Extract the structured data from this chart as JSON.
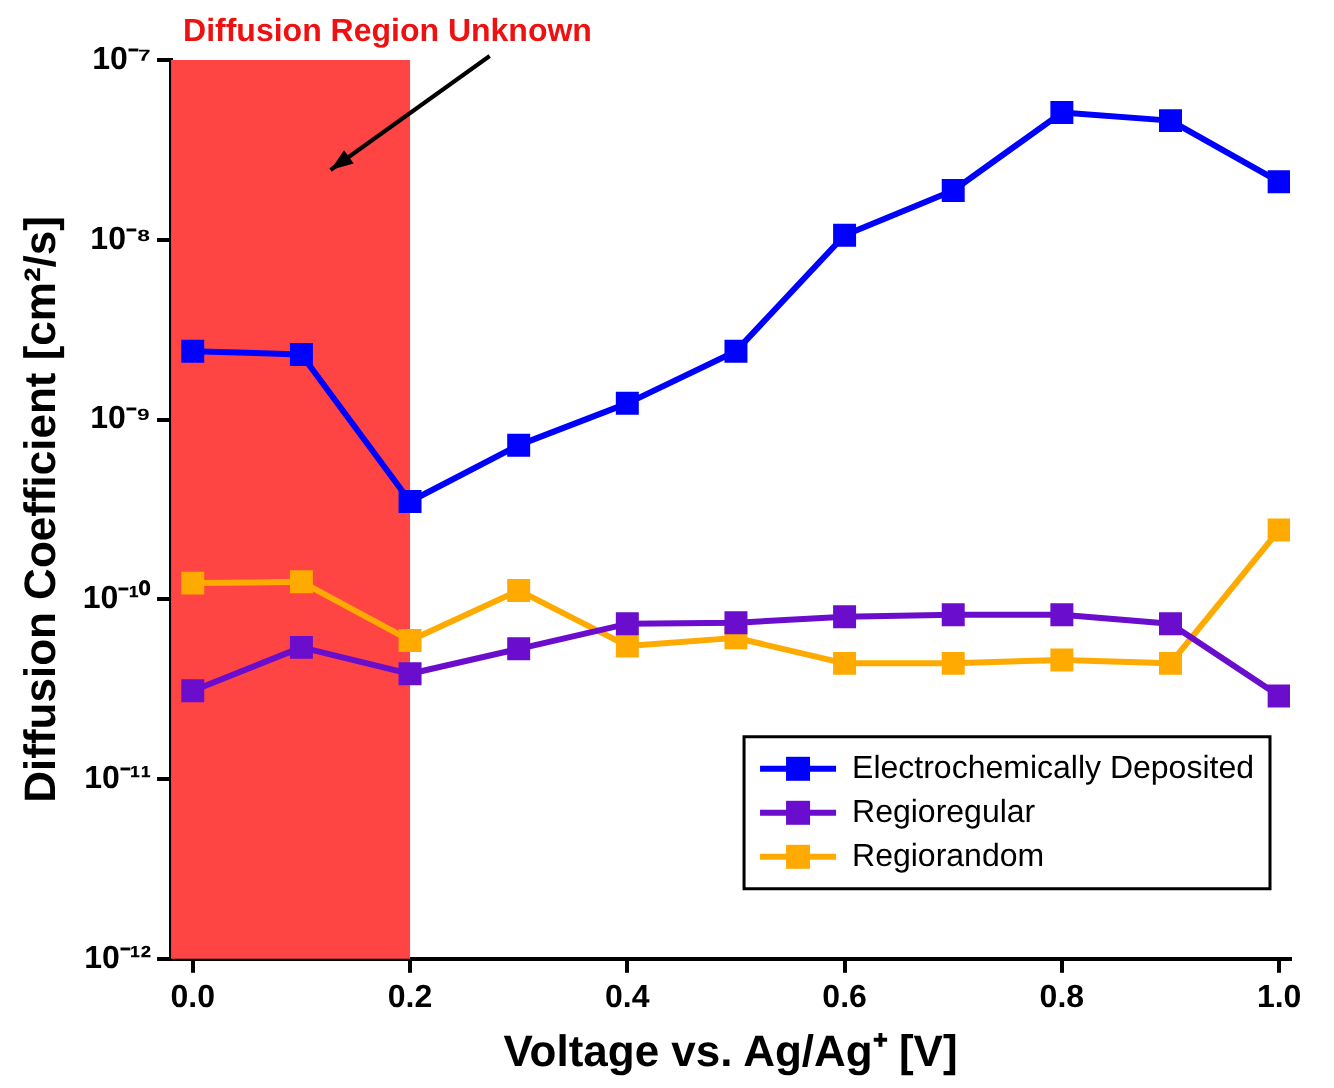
{
  "chart_data": {
    "type": "line",
    "xlabel": "Voltage vs. Ag/Ag⁺ [V]",
    "ylabel": "Diffusion Coefficient [cm²/s]",
    "x": [
      0,
      0.1,
      0.2,
      0.3,
      0.4,
      0.5,
      0.6,
      0.7,
      0.8,
      0.9,
      1.0
    ],
    "series": [
      {
        "name": "Electrochemically Deposited",
        "color": "#0000ff",
        "values": [
          2.4e-09,
          2.3e-09,
          3.5e-10,
          7.2e-10,
          1.23e-09,
          2.4e-09,
          1.06e-08,
          1.88e-08,
          5.1e-08,
          4.6e-08,
          2.1e-08
        ]
      },
      {
        "name": "Regioregular",
        "color": "#6a0dcc",
        "values": [
          3.1e-11,
          5.4e-11,
          3.85e-11,
          5.3e-11,
          7.3e-11,
          7.4e-11,
          8e-11,
          8.2e-11,
          8.2e-11,
          7.3e-11,
          2.9e-11
        ]
      },
      {
        "name": "Regiorandom",
        "color": "#ffaa00",
        "values": [
          1.23e-10,
          1.25e-10,
          5.9e-11,
          1.12e-10,
          5.5e-11,
          6.1e-11,
          4.4e-11,
          4.4e-11,
          4.6e-11,
          4.4e-11,
          2.43e-10
        ]
      }
    ],
    "xlim": [
      -0.02,
      1.01
    ],
    "xticks": [
      {
        "value": 0,
        "label": "0.0"
      },
      {
        "value": 0.2,
        "label": "0.2"
      },
      {
        "value": 0.4,
        "label": "0.4"
      },
      {
        "value": 0.6,
        "label": "0.6"
      },
      {
        "value": 0.8,
        "label": "0.8"
      },
      {
        "value": 1.0,
        "label": "1.0"
      }
    ],
    "ylim": [
      1e-12,
      1e-07
    ],
    "log": "y",
    "yticks": [
      {
        "value": 1e-12,
        "label": "10⁻¹²"
      },
      {
        "value": 1e-11,
        "label": "10⁻¹¹"
      },
      {
        "value": 1e-10,
        "label": "10⁻¹⁰"
      },
      {
        "value": 1e-09,
        "label": "10⁻⁹"
      },
      {
        "value": 1e-08,
        "label": "10⁻⁸"
      },
      {
        "value": 1e-07,
        "label": "10⁻⁷"
      }
    ],
    "bands": [
      {
        "axis": "x",
        "from": -0.02,
        "to": 0.2,
        "label": "Diffusion Region Unknown",
        "color": "#ff4444"
      }
    ],
    "grid": false,
    "legend": "bottom right",
    "marker": "square",
    "line_style": "solid"
  }
}
